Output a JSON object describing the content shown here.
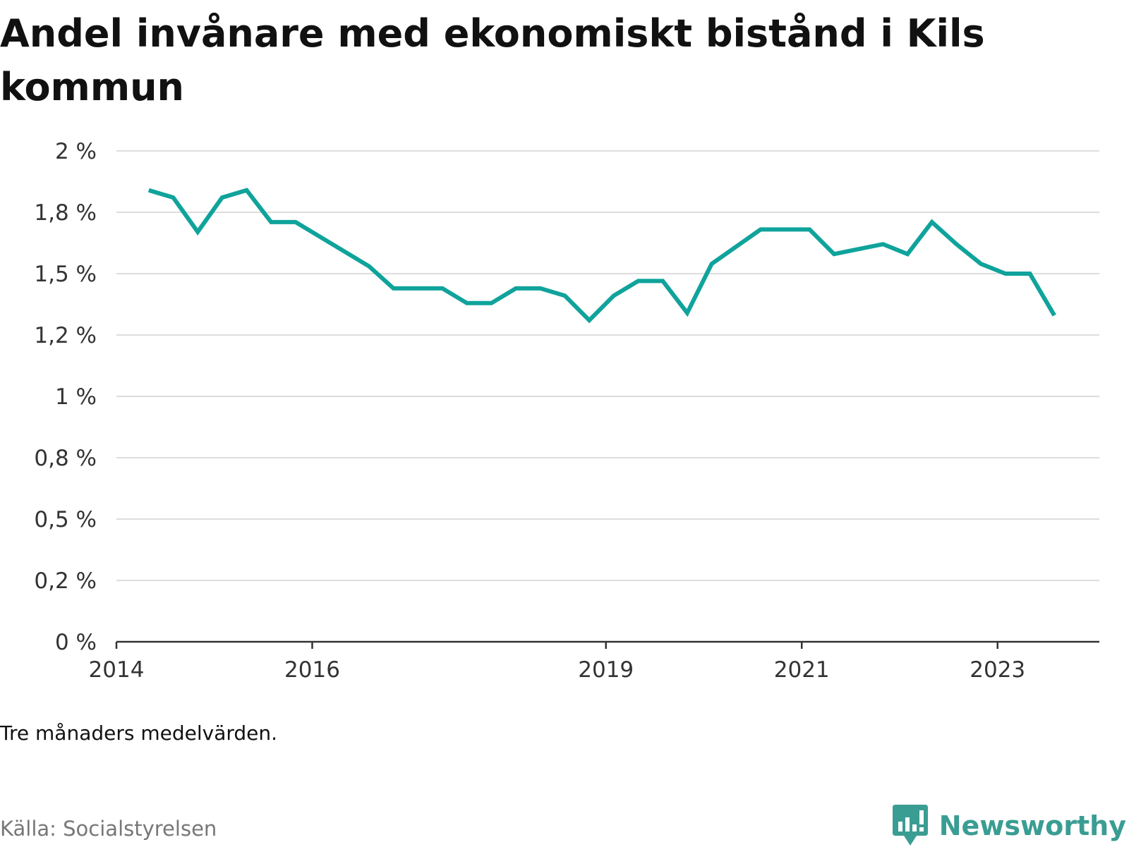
{
  "chart_data": {
    "type": "line",
    "title": "Andel invånare med ekonomiskt bistånd i Kils kommun",
    "note": "Tre månaders medelvärden.",
    "source": "Källa: Socialstyrelsen",
    "x_unit": "year",
    "xlim": [
      2014.0,
      2024.04
    ],
    "x_ticks": [
      2014,
      2016,
      2019,
      2021,
      2023
    ],
    "ylim": [
      0,
      2
    ],
    "y_ticks": [
      0,
      0.25,
      0.5,
      0.75,
      1,
      1.25,
      1.5,
      1.75,
      2
    ],
    "y_tick_labels": [
      "0 %",
      "0,2 %",
      "0,5 %",
      "0,8 %",
      "1 %",
      "1,2 %",
      "1,5 %",
      "1,8 %",
      "2 %"
    ],
    "grid": true,
    "line_color": "#0fa39b",
    "series": [
      {
        "x": [
          2014.33,
          2014.58,
          2014.83,
          2015.08,
          2015.33,
          2015.58,
          2015.83,
          2016.08,
          2016.33,
          2016.58,
          2016.83,
          2017.08,
          2017.33,
          2017.58,
          2017.83,
          2018.08,
          2018.33,
          2018.58,
          2018.83,
          2019.08,
          2019.33,
          2019.58,
          2019.83,
          2020.08,
          2020.33,
          2020.58,
          2020.83,
          2021.08,
          2021.33,
          2021.58,
          2021.83,
          2022.08,
          2022.33,
          2022.58,
          2022.83,
          2023.08,
          2023.33,
          2023.58
        ],
        "values": [
          1.84,
          1.81,
          1.67,
          1.81,
          1.84,
          1.71,
          1.71,
          1.65,
          1.59,
          1.53,
          1.44,
          1.44,
          1.44,
          1.38,
          1.38,
          1.44,
          1.44,
          1.41,
          1.31,
          1.41,
          1.47,
          1.47,
          1.34,
          1.54,
          1.61,
          1.68,
          1.68,
          1.68,
          1.58,
          1.6,
          1.62,
          1.58,
          1.71,
          1.62,
          1.54,
          1.5,
          1.5,
          1.33
        ]
      }
    ]
  },
  "brand": {
    "name": "Newsworthy",
    "icon": "newsworthy-logo-icon",
    "color": "#3a9d93"
  }
}
